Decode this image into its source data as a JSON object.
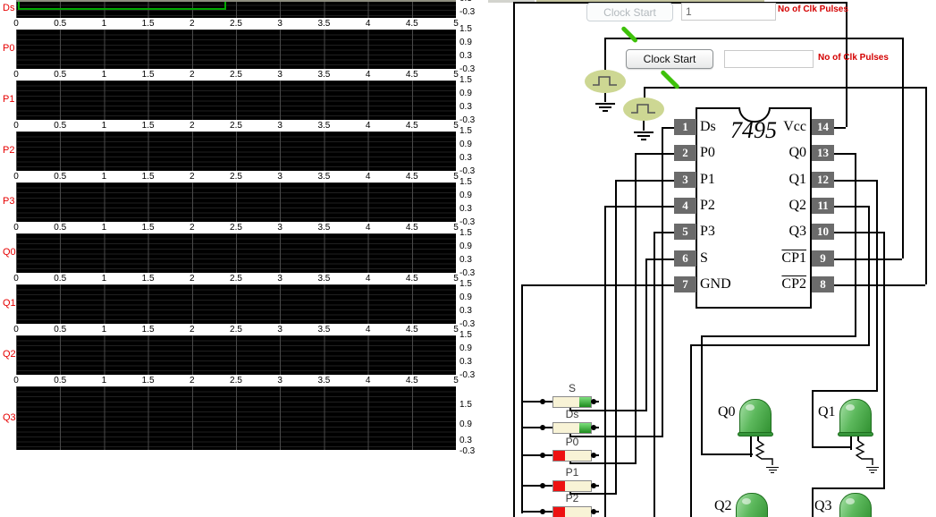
{
  "scope": {
    "signal_labels": [
      "Ds",
      "P0",
      "P1",
      "P2",
      "P3",
      "Q0",
      "Q1",
      "Q2",
      "Q3"
    ],
    "x_tick_labels": [
      "0",
      "0.5",
      "1",
      "1.5",
      "2",
      "2.5",
      "3",
      "3.5",
      "4",
      "4.5",
      "5"
    ],
    "y_tick_labels": [
      "1.5",
      "0.9",
      "0.3",
      "-0.3"
    ],
    "ds_y_tick_labels": [
      "0.3",
      "-0.3"
    ],
    "trace_color": "#00a800",
    "label_color": "#e60000"
  },
  "chart_data": [
    {
      "type": "line",
      "title": "Ds",
      "xlabel": "",
      "ylabel": "",
      "xlim": [
        0,
        5
      ],
      "ylim": [
        -0.3,
        1.5
      ],
      "x_ticks": [
        0,
        0.5,
        1,
        1.5,
        2,
        2.5,
        3,
        3.5,
        4,
        4.5,
        5
      ],
      "y_ticks": [
        -0.3,
        0.3,
        0.9,
        1.5
      ],
      "series": [
        {
          "name": "Ds",
          "steps": [
            {
              "t": [
                0,
                2.4
              ],
              "v": 0
            },
            {
              "t": [
                2.4,
                5
              ],
              "v": 1
            }
          ]
        }
      ],
      "grid": true
    },
    {
      "type": "line",
      "title": "P0",
      "xlim": [
        0,
        5
      ],
      "ylim": [
        -0.3,
        1.5
      ],
      "series": [],
      "grid": true
    },
    {
      "type": "line",
      "title": "P1",
      "xlim": [
        0,
        5
      ],
      "ylim": [
        -0.3,
        1.5
      ],
      "series": [],
      "grid": true
    },
    {
      "type": "line",
      "title": "P2",
      "xlim": [
        0,
        5
      ],
      "ylim": [
        -0.3,
        1.5
      ],
      "series": [],
      "grid": true
    },
    {
      "type": "line",
      "title": "P3",
      "xlim": [
        0,
        5
      ],
      "ylim": [
        -0.3,
        1.5
      ],
      "series": [],
      "grid": true
    },
    {
      "type": "line",
      "title": "Q0",
      "xlim": [
        0,
        5
      ],
      "ylim": [
        -0.3,
        1.5
      ],
      "series": [],
      "grid": true
    },
    {
      "type": "line",
      "title": "Q1",
      "xlim": [
        0,
        5
      ],
      "ylim": [
        -0.3,
        1.5
      ],
      "series": [],
      "grid": true
    },
    {
      "type": "line",
      "title": "Q2",
      "xlim": [
        0,
        5
      ],
      "ylim": [
        -0.3,
        1.5
      ],
      "series": [],
      "grid": true
    },
    {
      "type": "line",
      "title": "Q3",
      "xlim": [
        0,
        5
      ],
      "ylim": [
        -0.3,
        1.5
      ],
      "series": [],
      "grid": true
    }
  ],
  "controls": {
    "clock1": {
      "button_label": "Clock Start",
      "pulses_value": "1",
      "annotation": "No of Clk Pulses",
      "enabled": false
    },
    "clock2": {
      "button_label": "Clock Start",
      "pulses_value": "",
      "annotation": "No of Clk Pulses",
      "enabled": true
    }
  },
  "chip": {
    "name": "7495",
    "left_pins": [
      {
        "num": "1",
        "label": "Ds"
      },
      {
        "num": "2",
        "label": "P0"
      },
      {
        "num": "3",
        "label": "P1"
      },
      {
        "num": "4",
        "label": "P2"
      },
      {
        "num": "5",
        "label": "P3"
      },
      {
        "num": "6",
        "label": "S"
      },
      {
        "num": "7",
        "label": "GND"
      }
    ],
    "right_pins": [
      {
        "num": "14",
        "label": "Vcc",
        "overline": false
      },
      {
        "num": "13",
        "label": "Q0",
        "overline": false
      },
      {
        "num": "12",
        "label": "Q1",
        "overline": false
      },
      {
        "num": "11",
        "label": "Q2",
        "overline": false
      },
      {
        "num": "10",
        "label": "Q3",
        "overline": false
      },
      {
        "num": "9",
        "label": "CP1",
        "overline": true
      },
      {
        "num": "8",
        "label": "CP2",
        "overline": true
      }
    ]
  },
  "switches": [
    {
      "label": "S",
      "state": "on"
    },
    {
      "label": "Ds",
      "state": "on"
    },
    {
      "label": "P0",
      "state": "off"
    },
    {
      "label": "P1",
      "state": "off"
    },
    {
      "label": "P2",
      "state": "off"
    }
  ],
  "leds": [
    {
      "label": "Q0"
    },
    {
      "label": "Q1"
    },
    {
      "label": "Q2"
    },
    {
      "label": "Q3"
    }
  ],
  "colors": {
    "switch_on": "#1d8a1d",
    "switch_off": "#ee1111",
    "led_green": "#5cb85c",
    "pulse_gen_fill": "#cdd793",
    "wire": "#000000",
    "annotation_red": "#d40000"
  }
}
